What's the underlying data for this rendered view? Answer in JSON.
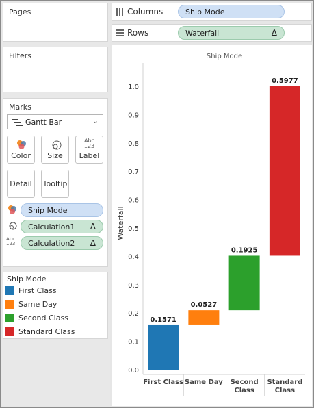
{
  "panes": {
    "pages_title": "Pages",
    "filters_title": "Filters",
    "marks_title": "Marks"
  },
  "marks": {
    "mark_type": "Gantt Bar",
    "buttons": [
      {
        "label": "Color",
        "icon": "color-icon"
      },
      {
        "label": "Size",
        "icon": "size-icon"
      },
      {
        "label": "Label",
        "icon": "label-icon",
        "icon_text_top": "Abc",
        "icon_text_bottom": "123"
      },
      {
        "label": "Detail"
      },
      {
        "label": "Tooltip"
      }
    ],
    "fields": [
      {
        "name": "Ship Mode",
        "encoding": "color",
        "kind": "dimension"
      },
      {
        "name": "Calculation1",
        "encoding": "size",
        "kind": "measure",
        "delta": "Δ"
      },
      {
        "name": "Calculation2",
        "encoding": "label",
        "kind": "measure",
        "delta": "Δ",
        "icon_text_top": "Abc",
        "icon_text_bottom": "123"
      }
    ]
  },
  "legend": {
    "title": "Ship Mode",
    "items": [
      {
        "label": "First Class",
        "color": "#1f77b4"
      },
      {
        "label": "Same Day",
        "color": "#ff7f0e"
      },
      {
        "label": "Second Class",
        "color": "#2ca02c"
      },
      {
        "label": "Standard Class",
        "color": "#d62728"
      }
    ]
  },
  "shelves": {
    "columns_label": "Columns",
    "columns_pill": "Ship Mode",
    "rows_label": "Rows",
    "rows_pill": "Waterfall",
    "rows_delta": "Δ"
  },
  "chart_data": {
    "type": "bar",
    "subtype": "waterfall",
    "title": "Ship Mode",
    "ylabel": "Waterfall",
    "ylim": [
      0,
      1.08
    ],
    "yticks": [
      "0.0",
      "0.1",
      "0.2",
      "0.3",
      "0.4",
      "0.5",
      "0.6",
      "0.7",
      "0.8",
      "0.9",
      "1.0"
    ],
    "categories": [
      [
        "First Class"
      ],
      [
        "Same Day"
      ],
      [
        "Second",
        "Class"
      ],
      [
        "Standard",
        "Class"
      ]
    ],
    "values": [
      0.1571,
      0.0527,
      0.1925,
      0.5977
    ],
    "labels": [
      "0.1571",
      "0.0527",
      "0.1925",
      "0.5977"
    ],
    "colors": [
      "#1f77b4",
      "#ff7f0e",
      "#2ca02c",
      "#d62728"
    ],
    "grid": false
  }
}
